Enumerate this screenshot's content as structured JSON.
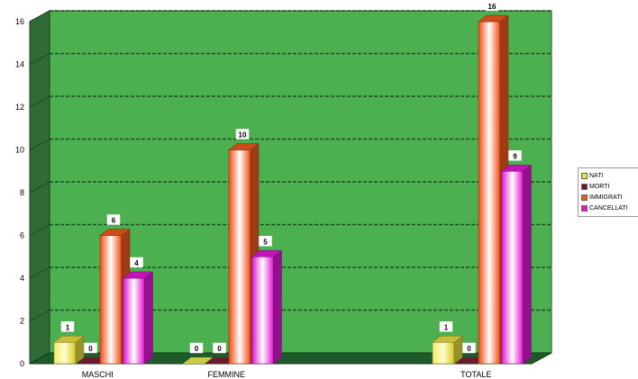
{
  "chart_data": {
    "type": "bar",
    "categories": [
      "MASCHI",
      "FEMMINE",
      "TOTALE"
    ],
    "series": [
      {
        "name": "NATI",
        "values": [
          1,
          0,
          1
        ],
        "color": "#e8e040"
      },
      {
        "name": "MORTI",
        "values": [
          0,
          0,
          0
        ],
        "color": "#7a1030"
      },
      {
        "name": "IMMIGRATI",
        "values": [
          6,
          10,
          16
        ],
        "color": "#f05a1e"
      },
      {
        "name": "CANCELLATI",
        "values": [
          4,
          5,
          9
        ],
        "color": "#e21ad8"
      }
    ],
    "ylim": [
      0,
      16
    ],
    "yticks": [
      0,
      2,
      4,
      6,
      8,
      10,
      12,
      14,
      16
    ],
    "grid": true,
    "legend_position": "right",
    "colors": {
      "wall": "#4caf50",
      "side_wall": "#2f6b36",
      "floor": "#1f5a2a",
      "grid": "#1e4d24"
    }
  }
}
